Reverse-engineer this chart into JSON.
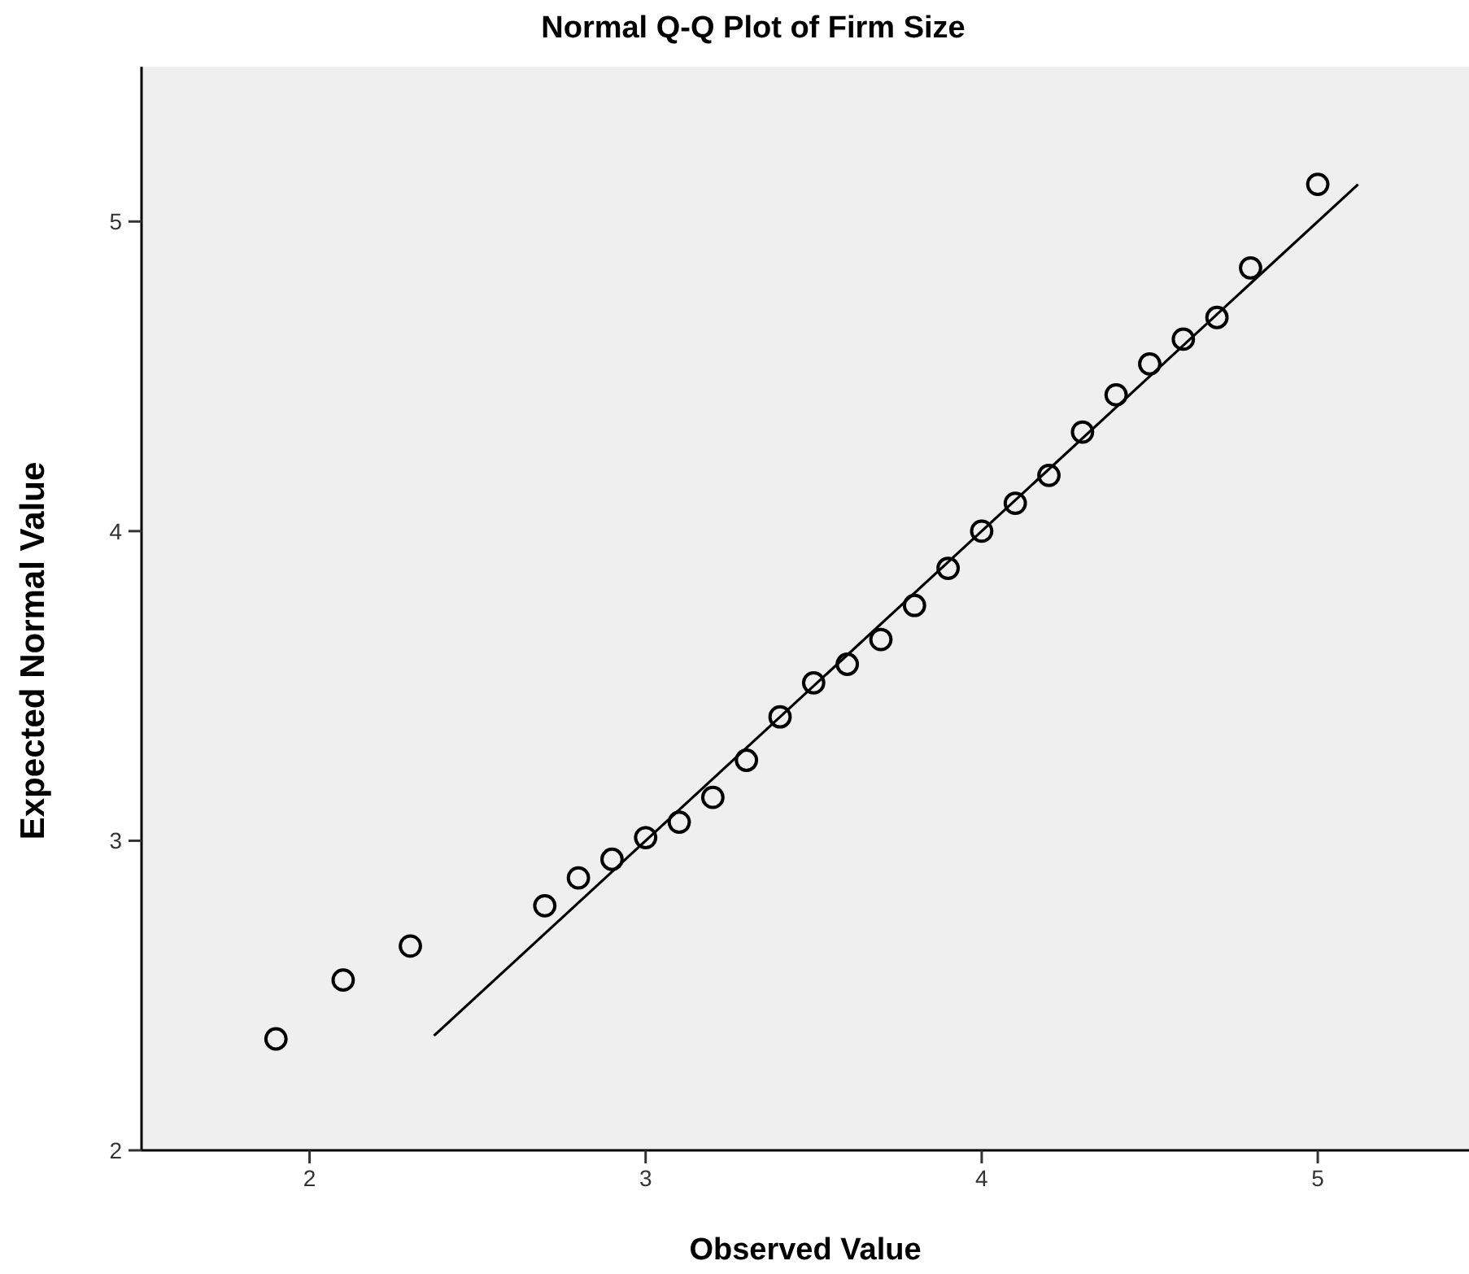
{
  "chart_data": {
    "type": "scatter",
    "title": "Normal Q-Q Plot of Firm Size",
    "xlabel": "Observed Value",
    "ylabel": "Expected Normal Value",
    "xlim": [
      1.5,
      5.45
    ],
    "ylim": [
      2,
      5.5
    ],
    "xticks": [
      2,
      3,
      4,
      5
    ],
    "yticks": [
      2,
      3,
      4,
      5
    ],
    "marker": "circle",
    "series": [
      {
        "color": "#000000",
        "x": [
          1.9,
          2.1,
          2.3,
          2.7,
          2.8,
          2.9,
          3.0,
          3.1,
          3.2,
          3.3,
          3.4,
          3.5,
          3.6,
          3.7,
          3.8,
          3.9,
          4.0,
          4.1,
          4.2,
          4.3,
          4.4,
          4.5,
          4.6,
          4.7,
          4.8,
          5.0
        ],
        "values": [
          2.36,
          2.55,
          2.66,
          2.79,
          2.88,
          2.94,
          3.01,
          3.06,
          3.14,
          3.26,
          3.4,
          3.51,
          3.57,
          3.65,
          3.76,
          3.88,
          4.0,
          4.09,
          4.18,
          4.32,
          4.44,
          4.54,
          4.62,
          4.69,
          4.85,
          5.12
        ]
      },
      {
        "type": "line",
        "color": "#000000",
        "x": [
          2.37,
          5.12
        ],
        "values": [
          2.37,
          5.12
        ],
        "marker": "none",
        "line_style": "solid"
      }
    ]
  }
}
